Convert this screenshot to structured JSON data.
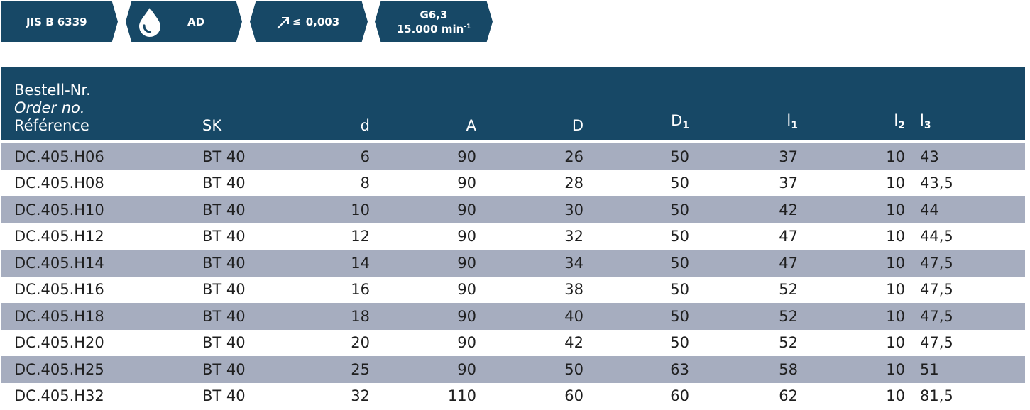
{
  "badges": {
    "standard": "JIS B 6339",
    "coolant": {
      "icon": "drop-icon",
      "label": "AD"
    },
    "runout": {
      "icon": "arrow-icon",
      "symbol": "≤",
      "value": "0,003"
    },
    "balance": {
      "grade": "G6,3",
      "speed": "15.000 min",
      "speed_exp": "-1"
    }
  },
  "colors": {
    "brand": "#174866",
    "row_stripe": "#a6adbf"
  },
  "table": {
    "headers": {
      "order_de": "Bestell-Nr.",
      "order_en": "Order no.",
      "order_fr": "Référence",
      "sk": "SK",
      "d": "d",
      "a": "A",
      "D": "D",
      "D1": "D",
      "D1_sub": "1",
      "l1": "l",
      "l1_sub": "1",
      "l2": "l",
      "l2_sub": "2",
      "l3": "l",
      "l3_sub": "3"
    },
    "rows": [
      [
        "DC.405.H06",
        "BT 40",
        "6",
        "90",
        "26",
        "50",
        "37",
        "10",
        "43"
      ],
      [
        "DC.405.H08",
        "BT 40",
        "8",
        "90",
        "28",
        "50",
        "37",
        "10",
        "43,5"
      ],
      [
        "DC.405.H10",
        "BT 40",
        "10",
        "90",
        "30",
        "50",
        "42",
        "10",
        "44"
      ],
      [
        "DC.405.H12",
        "BT 40",
        "12",
        "90",
        "32",
        "50",
        "47",
        "10",
        "44,5"
      ],
      [
        "DC.405.H14",
        "BT 40",
        "14",
        "90",
        "34",
        "50",
        "47",
        "10",
        "47,5"
      ],
      [
        "DC.405.H16",
        "BT 40",
        "16",
        "90",
        "38",
        "50",
        "52",
        "10",
        "47,5"
      ],
      [
        "DC.405.H18",
        "BT 40",
        "18",
        "90",
        "40",
        "50",
        "52",
        "10",
        "47,5"
      ],
      [
        "DC.405.H20",
        "BT 40",
        "20",
        "90",
        "42",
        "50",
        "52",
        "10",
        "47,5"
      ],
      [
        "DC.405.H25",
        "BT 40",
        "25",
        "90",
        "50",
        "63",
        "58",
        "10",
        "51"
      ],
      [
        "DC.405.H32",
        "BT 40",
        "32",
        "110",
        "60",
        "60",
        "62",
        "10",
        "81,5"
      ]
    ]
  }
}
